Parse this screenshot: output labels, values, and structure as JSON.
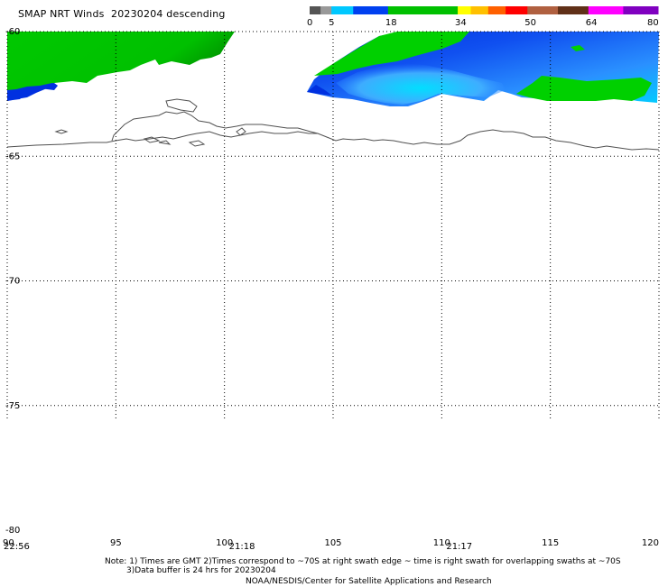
{
  "header": {
    "product": "SMAP NRT Winds",
    "date": "20230204",
    "pass": "descending"
  },
  "colorbar": {
    "tick_labels": [
      "0",
      "5",
      "18",
      "34",
      "50",
      "64",
      "80"
    ],
    "segments": [
      {
        "from": 0,
        "to": 2.5,
        "color": "#555555"
      },
      {
        "from": 2.5,
        "to": 5,
        "color": "#999999"
      },
      {
        "from": 5,
        "to": 10,
        "color": "#00c8ff"
      },
      {
        "from": 10,
        "to": 18,
        "color": "#0040f0"
      },
      {
        "from": 18,
        "to": 34,
        "color": "#00c000"
      },
      {
        "from": 34,
        "to": 37,
        "color": "#ffff00"
      },
      {
        "from": 37,
        "to": 41,
        "color": "#ffc000"
      },
      {
        "from": 41,
        "to": 45,
        "color": "#ff6000"
      },
      {
        "from": 45,
        "to": 50,
        "color": "#ff0000"
      },
      {
        "from": 50,
        "to": 57,
        "color": "#b06040"
      },
      {
        "from": 57,
        "to": 64,
        "color": "#603018"
      },
      {
        "from": 64,
        "to": 72,
        "color": "#ff00ff"
      },
      {
        "from": 72,
        "to": 80,
        "color": "#8000c0"
      }
    ]
  },
  "axes": {
    "lon_min": 90,
    "lon_max": 120,
    "lat_top": -60,
    "lat_bottom": -80,
    "lon_ticks": [
      90,
      95,
      100,
      105,
      110,
      115,
      120
    ],
    "lon_labels": [
      "90",
      "95",
      "100",
      "105",
      "110",
      "115",
      "120"
    ],
    "lat_ticks": [
      -60,
      -65,
      -70,
      -75,
      -80
    ],
    "lat_labels": [
      "-60",
      "-65",
      "-70",
      "-75",
      "-80"
    ],
    "grid": "dotted"
  },
  "swath_times": [
    {
      "lon": 90,
      "text": "22:56"
    },
    {
      "lon": 100,
      "text": "21:18"
    },
    {
      "lon": 110,
      "text": "21:17"
    }
  ],
  "footer": {
    "note_line1": "Note: 1) Times are GMT 2)Times correspond to ~70S at right swath edge ~ time is right swath for overlapping swaths at ~70S",
    "note_line2": "3)Data buffer is 24 hrs for 20230204",
    "credit": "NOAA/NESDIS/Center for Satellite Applications and Research"
  },
  "wind_colors": {
    "light": "#00e8ff",
    "mid": "#2070ff",
    "dark": "#0030e0",
    "green": "#00d000",
    "dark_green": "#00a000",
    "coast": "#505050"
  }
}
